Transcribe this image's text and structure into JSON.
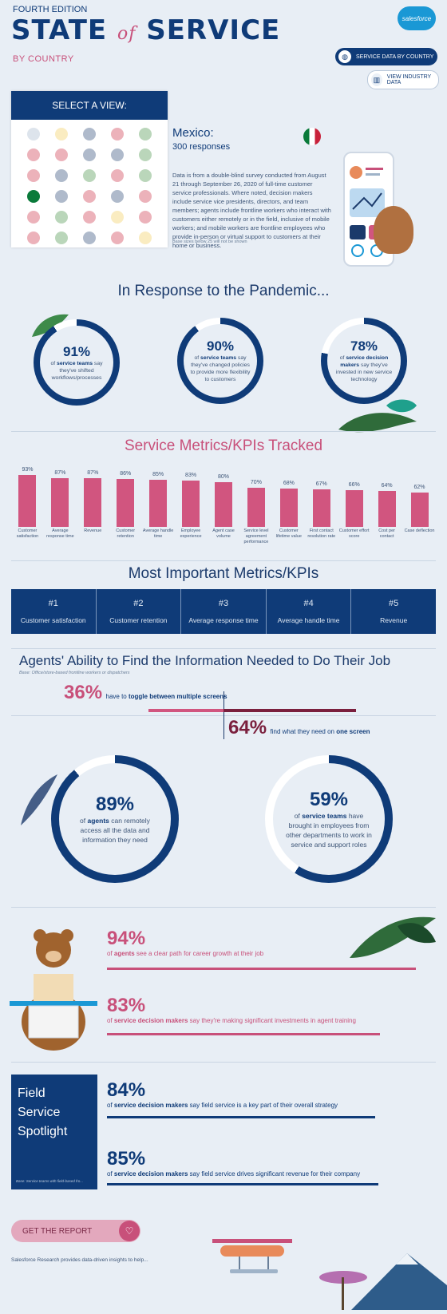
{
  "header": {
    "edition": "FOURTH EDITION",
    "title_state": "STATE",
    "title_of": "of",
    "title_service": "SERVICE",
    "subtitle": "BY COUNTRY",
    "logo": "salesforce",
    "nav_country": "SERVICE DATA BY COUNTRY",
    "nav_industry": "VIEW INDUSTRY DATA"
  },
  "selector": {
    "heading": "SELECT A VIEW:",
    "flags": [
      "#9fb3c8",
      "#f2c94c",
      "#1b3a6b",
      "#c8213a",
      "#3a8a3a",
      "#c8213a",
      "#c8213a",
      "#1b3a6b",
      "#1b3a6b",
      "#3a8a3a",
      "#c8213a",
      "#1b3a6b",
      "#3a8a3a",
      "#c8213a",
      "#3a8a3a",
      "#0a7a3a",
      "#1b3a6b",
      "#c8213a",
      "#1b3a6b",
      "#c8213a",
      "#c8213a",
      "#3a8a3a",
      "#c8213a",
      "#f2c94c",
      "#c8213a",
      "#c8213a",
      "#3a8a3a",
      "#1b3a6b",
      "#c8213a",
      "#f2c94c"
    ],
    "active_index": 15
  },
  "country_info": {
    "name": "Mexico:",
    "responses": "300 responses",
    "description": "Data is from a double-blind survey conducted from August 21 through September 26, 2020 of full-time customer service professionals. Where noted, decision makers include service vice presidents, directors, and team members; agents include frontline workers who interact with customers either remotely or in the field, inclusive of mobile workers; and mobile workers are frontline employees who provide in-person or virtual support to customers at their home or business.",
    "base_note": "Base sizes below 25 will not be shown"
  },
  "pandemic": {
    "heading": "In Response to the Pandemic...",
    "stats": [
      {
        "pct": "91%",
        "value": 91,
        "pre": "of ",
        "bold": "service teams",
        "post": " say they've shifted workflows/processes"
      },
      {
        "pct": "90%",
        "value": 90,
        "pre": "of ",
        "bold": "service teams",
        "post": " say they've changed policies to provide more flexibility to customers"
      },
      {
        "pct": "78%",
        "value": 78,
        "pre": "of ",
        "bold": "service decision makers",
        "post": " say they've invested in new service technology"
      }
    ]
  },
  "metrics": {
    "heading": "Service Metrics/KPIs Tracked",
    "chart_data": {
      "type": "bar",
      "categories": [
        "Customer satisfaction",
        "Average response time",
        "Revenue",
        "Customer retention",
        "Average handle time",
        "Employee experience",
        "Agent case volume",
        "Service level agreement performance",
        "Customer lifetime value",
        "First contact resolution rate",
        "Customer effort score",
        "Cost per contact",
        "Case deflection"
      ],
      "values": [
        93,
        87,
        87,
        86,
        85,
        83,
        80,
        70,
        68,
        67,
        66,
        64,
        62
      ],
      "labels": [
        "93%",
        "87%",
        "87%",
        "86%",
        "85%",
        "83%",
        "80%",
        "70%",
        "68%",
        "67%",
        "66%",
        "64%",
        "62%"
      ],
      "ylim": [
        0,
        100
      ]
    }
  },
  "important": {
    "heading": "Most Important Metrics/KPIs",
    "items": [
      {
        "rank": "#1",
        "name": "Customer satisfaction"
      },
      {
        "rank": "#2",
        "name": "Customer retention"
      },
      {
        "rank": "#3",
        "name": "Average response time"
      },
      {
        "rank": "#4",
        "name": "Average handle time"
      },
      {
        "rank": "#5",
        "name": "Revenue"
      }
    ]
  },
  "agents": {
    "heading": "Agents' Ability to Find the Information Needed to Do Their Job",
    "base": "Base: Office/store-based frontline workers or dispatchers",
    "toggle": {
      "pct": "36%",
      "value": 36,
      "pre": "have to ",
      "bold": "toggle between multiple screens"
    },
    "one_screen": {
      "pct": "64%",
      "value": 64,
      "pre": "find what they need on ",
      "bold": "one screen"
    },
    "ring_left": {
      "pct": "89%",
      "value": 89,
      "pre": "of ",
      "bold": "agents",
      "post": " can remotely access all the data and information they need"
    },
    "ring_right": {
      "pct": "59%",
      "value": 59,
      "pre": "of ",
      "bold": "service teams",
      "post": " have brought in employees from other departments to work in service and support roles"
    }
  },
  "career": {
    "stat1": {
      "pct": "94%",
      "value": 94,
      "pre": "of ",
      "bold": "agents",
      "post": " see a clear path for career growth at their job"
    },
    "stat2": {
      "pct": "83%",
      "value": 83,
      "pre": "of ",
      "bold": "service decision makers",
      "post": " say they're making significant investments in agent training"
    }
  },
  "field": {
    "title_line1": "Field",
    "title_line2": "Service",
    "title_line3": "Spotlight",
    "base": "Base: Service teams with field-based fro...",
    "stat1": {
      "pct": "84%",
      "value": 84,
      "pre": "of ",
      "bold": "service decision makers",
      "post": " say field service is a key part of their overall strategy"
    },
    "stat2": {
      "pct": "85%",
      "value": 85,
      "pre": "of ",
      "bold": "service decision makers",
      "post": " say field service drives significant revenue for their company"
    }
  },
  "footer": {
    "cta": "GET THE REPORT",
    "note": "Salesforce Research provides data-driven insights to help..."
  }
}
